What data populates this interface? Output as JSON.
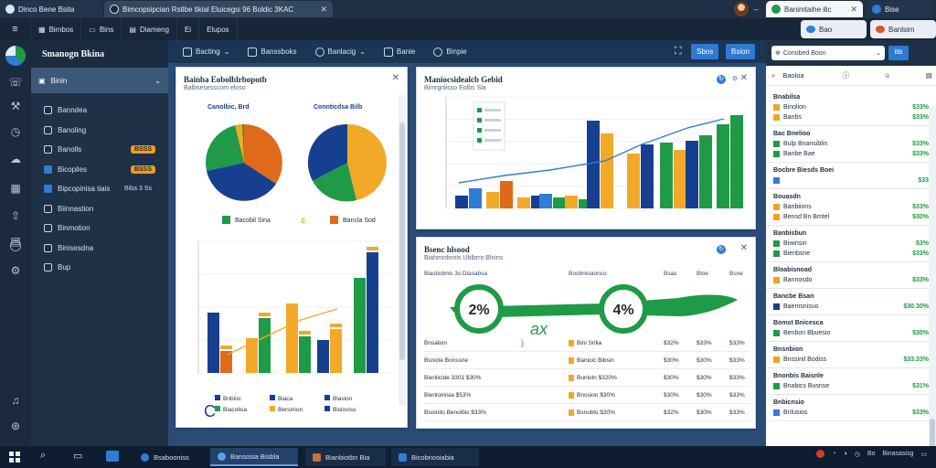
{
  "browser": {
    "tabs": [
      {
        "label": "Dinco Bene Bsita",
        "icon": "app-icon"
      },
      {
        "label": "Bimcopsipcian Rstlbe tikial Eluicegsi 96 Boldic 3KAC",
        "icon": "globe-icon"
      },
      {
        "label": "Banimtaihe ilic",
        "icon": "leaf-icon"
      },
      {
        "label": "Bise",
        "icon": "tab-icon"
      }
    ]
  },
  "menu": {
    "items": [
      "Bimbos",
      "Bins",
      "Diameng",
      "Ei",
      "Elupos"
    ],
    "search_label": "Bao",
    "app_label": "Banlsim"
  },
  "sidebar": {
    "brand": "Smanogn Bkina",
    "section": "Binin",
    "items": [
      {
        "label": "Banndea",
        "badge": ""
      },
      {
        "label": "Banoling",
        "badge": ""
      },
      {
        "label": "Banolls",
        "badge": "BSSS"
      },
      {
        "label": "Bicopiles",
        "badge": "BSSS"
      },
      {
        "label": "Bipcopinisa tiais",
        "badge": "Biba 3 Ss"
      },
      {
        "label": "Biinnastion",
        "badge": ""
      },
      {
        "label": "Binmotion",
        "badge": ""
      },
      {
        "label": "Binisesdna",
        "badge": ""
      },
      {
        "label": "Bup",
        "badge": ""
      }
    ]
  },
  "toolbar": {
    "items": [
      "Bacting",
      "Banssboks",
      "Banlacig",
      "Banie",
      "Binpie"
    ],
    "btn_primary": "Sbos",
    "btn_secondary": "Bsion"
  },
  "panel_left": {
    "title": "Bainba Eobolblrbopotb",
    "subtitle": "Balbsesesscom eloso",
    "pie1_label": "Canolbic, Brd",
    "pie2_label": "Connticdsa Bilb",
    "legend": [
      "Bacobil Sina",
      "Bancla Sod"
    ],
    "bar_legend": [
      "Bnbioc",
      "Biaca",
      "Blaslon",
      "Biacolisa",
      "Bersinion",
      "Bisloviss"
    ],
    "bar_c": "C"
  },
  "panel_mid_top": {
    "title": "Maniocsidealcb Gebid",
    "subtitle": "Bimrgnlisso Eolbs Sla"
  },
  "panel_mid_bot": {
    "title": "Bsenc hlsood",
    "subtitle": "Biahmrdinnis Ublbrro Blnins",
    "gauge_left": "2%",
    "gauge_right": "4%",
    "script": "ax",
    "columns": [
      "Biastiobnis 3s Diasabsa",
      "Boobnioaonco",
      "Bsas",
      "Bloe",
      "Bsne"
    ],
    "rows": [
      {
        "name": "Bnsalion",
        "mid": "Bini Srilia",
        "a": "$32%",
        "b": "$33%",
        "c": "$33%"
      },
      {
        "name": "Bsnicle Bonssne",
        "mid": "Banioic Bibsin",
        "a": "$30%",
        "b": "$30%",
        "c": "$33%"
      },
      {
        "name": "Bienlicide 3301 $30%",
        "mid": "Bunioln $320%",
        "a": "$30%",
        "b": "$30%",
        "c": "$33%"
      },
      {
        "name": "Bienloinisia $53%",
        "mid": "Bnosion $30%",
        "a": "$30%",
        "b": "$30%",
        "c": "$33%"
      },
      {
        "name": "Bsoinilo Benolbis $33%",
        "mid": "Bsnoblo $30%",
        "a": "$32%",
        "b": "$30%",
        "c": "$33%"
      }
    ]
  },
  "right_panel": {
    "search": "Conobed Boon",
    "header": "Baoloa",
    "sections": [
      {
        "title": "Bnabilsa",
        "rows": [
          {
            "label": "Binolion",
            "value": "$33%"
          },
          {
            "label": "Banbs",
            "value": "$33%"
          }
        ]
      },
      {
        "title": "Bac Bnelioo",
        "rows": [
          {
            "label": "Bulp Bnansiblin",
            "value": "$33%"
          },
          {
            "label": "Banbe Bae",
            "value": "$33%"
          }
        ]
      },
      {
        "title": "Bocbre Biesds Boei",
        "rows": [
          {
            "label": "",
            "value": "$33"
          }
        ]
      },
      {
        "title": "Bouasdn",
        "rows": [
          {
            "label": "Banbiions",
            "value": "$33%"
          },
          {
            "label": "Bensd Bn Bmtel",
            "value": "$30%"
          }
        ]
      },
      {
        "title": "Banbisbun",
        "rows": [
          {
            "label": "Biwinsin",
            "value": "$3%"
          },
          {
            "label": "Bienbsne",
            "value": "$33%"
          }
        ]
      },
      {
        "title": "Bloabisnoad",
        "rows": [
          {
            "label": "Bannosdo",
            "value": "$33%"
          }
        ]
      },
      {
        "title": "Bancbe Bsan",
        "rows": [
          {
            "label": "Baemsnisuo",
            "value": "$30.30%"
          }
        ]
      },
      {
        "title": "Bomst Bnicesca",
        "rows": [
          {
            "label": "Benbon Bbuesio",
            "value": "$30%"
          }
        ]
      },
      {
        "title": "Bnsnbion",
        "rows": [
          {
            "label": "Bnssinil Bodiss",
            "value": "$33.33%"
          }
        ]
      },
      {
        "title": "Bnonbis Baisnle",
        "rows": [
          {
            "label": "Bnabics Busnse",
            "value": "$31%"
          }
        ]
      },
      {
        "title": "Bnbicnsio",
        "rows": [
          {
            "label": "Bnlusios",
            "value": "$33%"
          }
        ]
      }
    ]
  },
  "taskbar": {
    "items": [
      "Bsabooniss",
      "Bansosia Bisbla",
      "Bianbiotbn Bia",
      "Bicobnosiabia"
    ],
    "tray": [
      "Bo",
      "Binasasisg"
    ]
  },
  "colors": {
    "green": "#1f9a46",
    "orange": "#e06a1a",
    "navy": "#173f8f",
    "gold": "#f2a928",
    "blue": "#2f7dd6"
  }
}
